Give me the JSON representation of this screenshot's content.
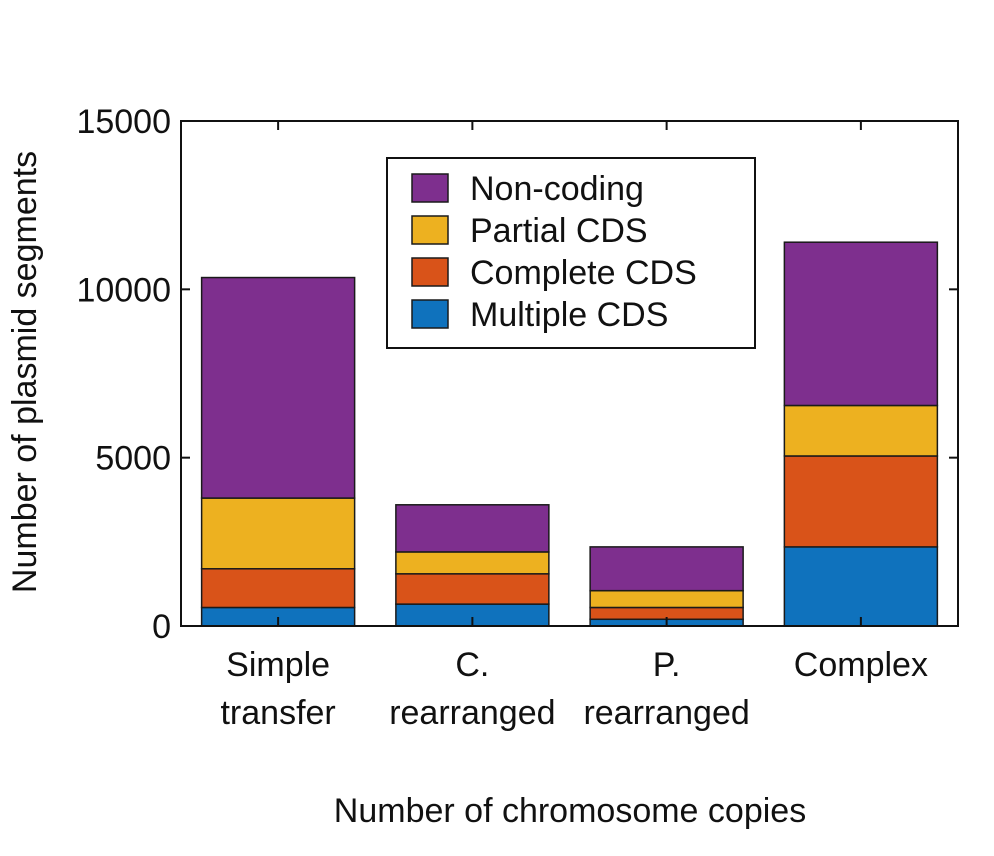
{
  "chart_data": {
    "type": "bar",
    "stacked": true,
    "categories": [
      [
        "Simple",
        "transfer"
      ],
      [
        "C.",
        "rearranged"
      ],
      [
        "P.",
        "rearranged"
      ],
      [
        "Complex"
      ]
    ],
    "series": [
      {
        "name": "Multiple CDS",
        "color": "#0f72bd",
        "values": [
          550,
          650,
          200,
          2350
        ]
      },
      {
        "name": "Complete CDS",
        "color": "#d95319",
        "values": [
          1150,
          900,
          350,
          2700
        ]
      },
      {
        "name": "Partial CDS",
        "color": "#edb120",
        "values": [
          2100,
          650,
          500,
          1500
        ]
      },
      {
        "name": "Non-coding",
        "color": "#7e2f8e",
        "values": [
          6550,
          1400,
          1300,
          4850
        ]
      }
    ],
    "legend_order": [
      "Non-coding",
      "Partial CDS",
      "Complete CDS",
      "Multiple CDS"
    ],
    "legend_position": "top-center",
    "xlabel": "Number of chromosome copies",
    "ylabel": "Number of plasmid segments",
    "ylim": [
      0,
      15000
    ],
    "yticks": [
      0,
      5000,
      10000,
      15000
    ],
    "grid": false
  }
}
